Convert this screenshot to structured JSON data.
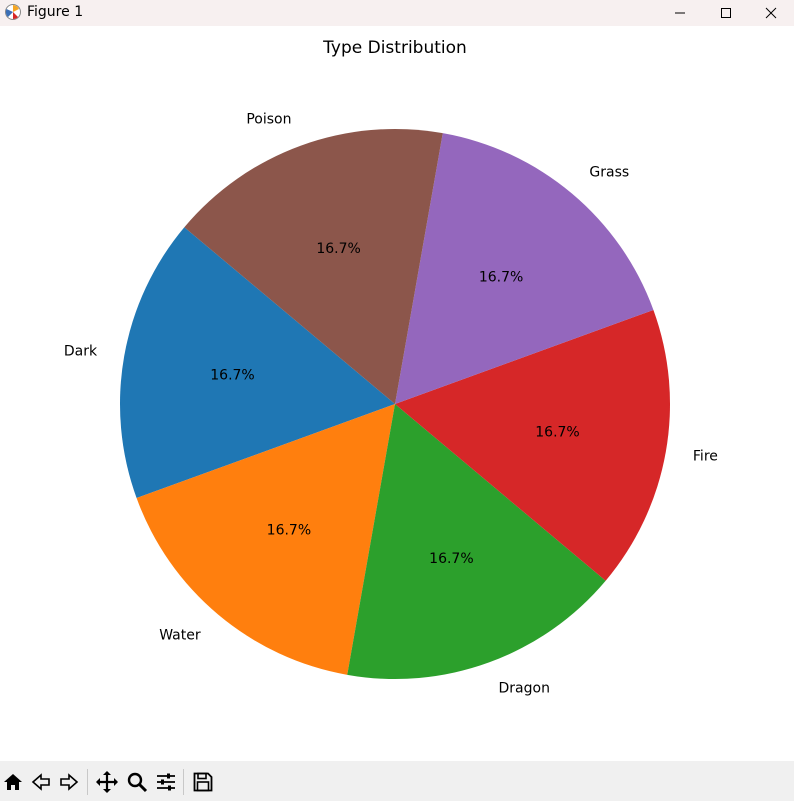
{
  "window": {
    "title": "Figure 1",
    "controls": [
      "minimize",
      "maximize",
      "close"
    ]
  },
  "toolbar": {
    "tools": [
      "home-icon",
      "back-icon",
      "forward-icon",
      "pan-icon",
      "zoom-icon",
      "configure-subplots-icon",
      "save-icon"
    ]
  },
  "chart_data": {
    "type": "pie",
    "title": "Type Distribution",
    "labels": [
      "Dark",
      "Water",
      "Dragon",
      "Fire",
      "Grass",
      "Poison"
    ],
    "values": [
      1,
      1,
      1,
      1,
      1,
      1
    ],
    "percent_labels": [
      "16.7%",
      "16.7%",
      "16.7%",
      "16.7%",
      "16.7%",
      "16.7%"
    ],
    "colors": [
      "#1f77b4",
      "#ff7f0e",
      "#2ca02c",
      "#d62728",
      "#9467bd",
      "#8c564b"
    ],
    "start_angle_deg": 140,
    "direction": "counterclockwise",
    "legend": "none"
  }
}
